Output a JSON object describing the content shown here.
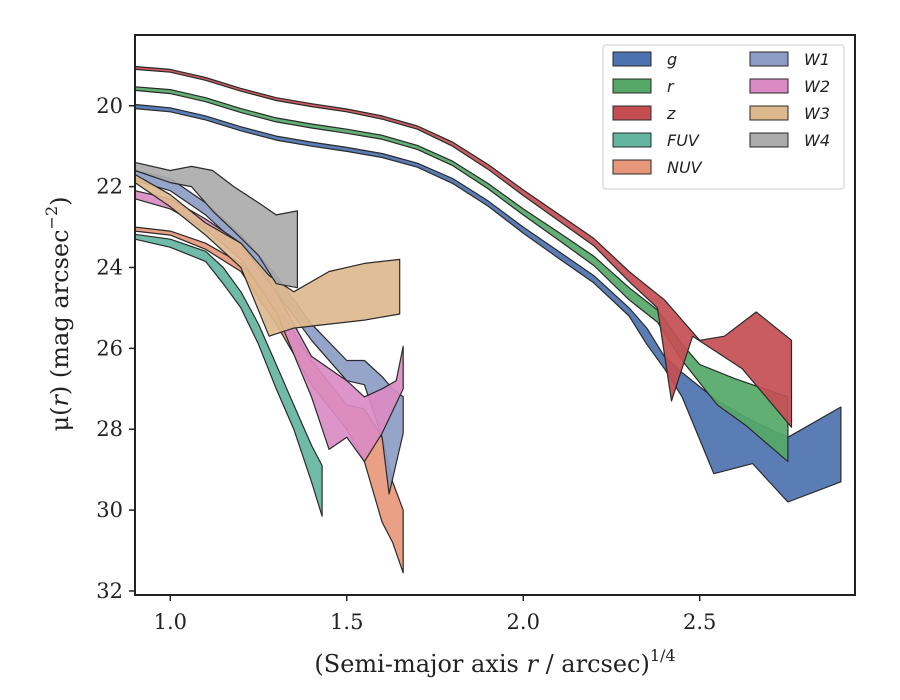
{
  "chart_data": {
    "type": "area",
    "xlabel": "(Semi-major axis r / arcsec)^1/4",
    "xlabel_main": "(Semi-major axis ",
    "xlabel_var": "r",
    "xlabel_rest": " / arcsec)",
    "xlabel_sup": "1/4",
    "ylabel": "μ(r) (mag arcsec^−2)",
    "ylabel_main": "μ(",
    "ylabel_var": "r",
    "ylabel_rest": ") (mag arcsec",
    "ylabel_sup": "−2",
    "ylabel_close": ")",
    "xlim": [
      0.9,
      2.94
    ],
    "ylim": [
      32.1,
      18.25
    ],
    "y_inverted": true,
    "xticks": [
      1.0,
      1.5,
      2.0,
      2.5
    ],
    "xtick_labels": [
      "1.0",
      "1.5",
      "2.0",
      "2.5"
    ],
    "yticks": [
      20,
      22,
      24,
      26,
      28,
      30,
      32
    ],
    "ytick_labels": [
      "20",
      "22",
      "24",
      "26",
      "28",
      "30",
      "32"
    ],
    "grid": false,
    "legend": {
      "placement": "top-right",
      "columns": 2
    },
    "series": [
      {
        "name": "g",
        "color": "#4C72B0",
        "upper": [
          [
            0.9,
            19.97
          ],
          [
            1.0,
            20.05
          ],
          [
            1.1,
            20.25
          ],
          [
            1.2,
            20.52
          ],
          [
            1.3,
            20.75
          ],
          [
            1.4,
            20.9
          ],
          [
            1.5,
            21.03
          ],
          [
            1.6,
            21.18
          ],
          [
            1.7,
            21.42
          ],
          [
            1.8,
            21.8
          ],
          [
            1.9,
            22.35
          ],
          [
            2.0,
            23.0
          ],
          [
            2.1,
            23.6
          ],
          [
            2.2,
            24.2
          ],
          [
            2.3,
            25.0
          ],
          [
            2.35,
            25.5
          ],
          [
            2.4,
            26.2
          ],
          [
            2.45,
            26.6
          ],
          [
            2.55,
            27.3
          ],
          [
            2.65,
            27.8
          ],
          [
            2.75,
            28.2
          ],
          [
            2.9,
            27.45
          ]
        ],
        "lower": [
          [
            0.9,
            20.07
          ],
          [
            1.0,
            20.15
          ],
          [
            1.1,
            20.35
          ],
          [
            1.2,
            20.62
          ],
          [
            1.3,
            20.85
          ],
          [
            1.4,
            21.0
          ],
          [
            1.5,
            21.13
          ],
          [
            1.6,
            21.28
          ],
          [
            1.7,
            21.52
          ],
          [
            1.8,
            21.92
          ],
          [
            1.9,
            22.48
          ],
          [
            2.0,
            23.15
          ],
          [
            2.1,
            23.77
          ],
          [
            2.2,
            24.38
          ],
          [
            2.3,
            25.2
          ],
          [
            2.35,
            25.9
          ],
          [
            2.4,
            26.5
          ],
          [
            2.45,
            27.2
          ],
          [
            2.54,
            29.1
          ],
          [
            2.65,
            28.85
          ],
          [
            2.75,
            29.8
          ],
          [
            2.9,
            29.3
          ]
        ]
      },
      {
        "name": "r",
        "color": "#55A868",
        "upper": [
          [
            0.9,
            19.53
          ],
          [
            1.0,
            19.6
          ],
          [
            1.1,
            19.8
          ],
          [
            1.2,
            20.07
          ],
          [
            1.3,
            20.3
          ],
          [
            1.4,
            20.45
          ],
          [
            1.5,
            20.58
          ],
          [
            1.6,
            20.73
          ],
          [
            1.7,
            20.98
          ],
          [
            1.8,
            21.37
          ],
          [
            1.9,
            21.92
          ],
          [
            2.0,
            22.55
          ],
          [
            2.1,
            23.13
          ],
          [
            2.2,
            23.72
          ],
          [
            2.3,
            24.5
          ],
          [
            2.38,
            25.05
          ],
          [
            2.45,
            25.9
          ],
          [
            2.5,
            26.4
          ],
          [
            2.6,
            26.75
          ],
          [
            2.75,
            27.2
          ]
        ],
        "lower": [
          [
            0.9,
            19.62
          ],
          [
            1.0,
            19.7
          ],
          [
            1.1,
            19.9
          ],
          [
            1.2,
            20.17
          ],
          [
            1.3,
            20.4
          ],
          [
            1.4,
            20.55
          ],
          [
            1.5,
            20.68
          ],
          [
            1.6,
            20.83
          ],
          [
            1.7,
            21.08
          ],
          [
            1.8,
            21.48
          ],
          [
            1.9,
            22.05
          ],
          [
            2.0,
            22.7
          ],
          [
            2.1,
            23.32
          ],
          [
            2.2,
            23.95
          ],
          [
            2.3,
            24.8
          ],
          [
            2.38,
            25.35
          ],
          [
            2.45,
            26.3
          ],
          [
            2.55,
            27.4
          ],
          [
            2.63,
            27.9
          ],
          [
            2.75,
            28.8
          ]
        ]
      },
      {
        "name": "z",
        "color": "#C44E52",
        "upper": [
          [
            0.9,
            19.03
          ],
          [
            1.0,
            19.1
          ],
          [
            1.1,
            19.3
          ],
          [
            1.2,
            19.57
          ],
          [
            1.3,
            19.8
          ],
          [
            1.4,
            19.95
          ],
          [
            1.5,
            20.08
          ],
          [
            1.6,
            20.25
          ],
          [
            1.7,
            20.5
          ],
          [
            1.8,
            20.9
          ],
          [
            1.9,
            21.45
          ],
          [
            2.0,
            22.08
          ],
          [
            2.1,
            22.68
          ],
          [
            2.2,
            23.28
          ],
          [
            2.3,
            24.1
          ],
          [
            2.4,
            24.8
          ],
          [
            2.45,
            25.3
          ],
          [
            2.5,
            25.8
          ],
          [
            2.57,
            25.7
          ],
          [
            2.66,
            25.1
          ],
          [
            2.76,
            25.8
          ]
        ],
        "lower": [
          [
            0.9,
            19.1
          ],
          [
            1.0,
            19.17
          ],
          [
            1.1,
            19.37
          ],
          [
            1.2,
            19.64
          ],
          [
            1.3,
            19.87
          ],
          [
            1.4,
            20.02
          ],
          [
            1.5,
            20.15
          ],
          [
            1.6,
            20.33
          ],
          [
            1.7,
            20.58
          ],
          [
            1.8,
            21.0
          ],
          [
            1.9,
            21.57
          ],
          [
            2.0,
            22.22
          ],
          [
            2.1,
            22.84
          ],
          [
            2.2,
            23.46
          ],
          [
            2.3,
            24.35
          ],
          [
            2.38,
            25.0
          ],
          [
            2.42,
            27.3
          ],
          [
            2.48,
            25.7
          ],
          [
            2.62,
            26.5
          ],
          [
            2.76,
            27.95
          ]
        ]
      },
      {
        "name": "FUV",
        "color": "#64B5A0",
        "upper": [
          [
            0.9,
            23.18
          ],
          [
            1.0,
            23.3
          ],
          [
            1.1,
            23.6
          ],
          [
            1.15,
            24.0
          ],
          [
            1.2,
            24.6
          ],
          [
            1.25,
            25.4
          ],
          [
            1.3,
            26.4
          ],
          [
            1.35,
            27.4
          ],
          [
            1.4,
            28.4
          ],
          [
            1.43,
            28.9
          ]
        ],
        "lower": [
          [
            0.9,
            23.3
          ],
          [
            1.0,
            23.5
          ],
          [
            1.1,
            23.85
          ],
          [
            1.15,
            24.4
          ],
          [
            1.2,
            25.0
          ],
          [
            1.25,
            25.9
          ],
          [
            1.3,
            27.0
          ],
          [
            1.35,
            28.0
          ],
          [
            1.4,
            29.3
          ],
          [
            1.43,
            30.15
          ]
        ]
      },
      {
        "name": "NUV",
        "color": "#E8987A",
        "upper": [
          [
            0.9,
            23.0
          ],
          [
            1.0,
            23.1
          ],
          [
            1.1,
            23.4
          ],
          [
            1.2,
            23.9
          ],
          [
            1.3,
            24.9
          ],
          [
            1.4,
            26.3
          ],
          [
            1.5,
            27.4
          ],
          [
            1.55,
            27.5
          ],
          [
            1.6,
            28.2
          ],
          [
            1.63,
            29.3
          ],
          [
            1.66,
            30.0
          ]
        ],
        "lower": [
          [
            0.9,
            23.1
          ],
          [
            1.0,
            23.2
          ],
          [
            1.1,
            23.55
          ],
          [
            1.2,
            24.1
          ],
          [
            1.3,
            25.4
          ],
          [
            1.4,
            26.9
          ],
          [
            1.5,
            28.0
          ],
          [
            1.55,
            28.8
          ],
          [
            1.6,
            30.3
          ],
          [
            1.63,
            30.8
          ],
          [
            1.66,
            31.55
          ]
        ]
      },
      {
        "name": "W1",
        "color": "#8C9CC4",
        "upper": [
          [
            0.9,
            21.6
          ],
          [
            1.0,
            21.8
          ],
          [
            1.1,
            22.4
          ],
          [
            1.2,
            23.2
          ],
          [
            1.3,
            24.2
          ],
          [
            1.4,
            25.4
          ],
          [
            1.5,
            26.3
          ],
          [
            1.55,
            26.3
          ],
          [
            1.6,
            26.7
          ],
          [
            1.63,
            27.0
          ],
          [
            1.66,
            27.2
          ]
        ],
        "lower": [
          [
            0.9,
            21.85
          ],
          [
            1.0,
            22.1
          ],
          [
            1.1,
            22.7
          ],
          [
            1.2,
            23.5
          ],
          [
            1.3,
            24.6
          ],
          [
            1.4,
            25.8
          ],
          [
            1.5,
            26.8
          ],
          [
            1.55,
            26.9
          ],
          [
            1.6,
            28.2
          ],
          [
            1.62,
            29.6
          ],
          [
            1.66,
            28.1
          ]
        ]
      },
      {
        "name": "W2",
        "color": "#DA8BC3",
        "upper": [
          [
            0.9,
            22.1
          ],
          [
            1.0,
            22.3
          ],
          [
            1.1,
            22.8
          ],
          [
            1.2,
            23.4
          ],
          [
            1.3,
            24.6
          ],
          [
            1.4,
            26.2
          ],
          [
            1.5,
            26.8
          ],
          [
            1.55,
            27.2
          ],
          [
            1.6,
            27.0
          ],
          [
            1.64,
            26.8
          ],
          [
            1.66,
            25.95
          ]
        ],
        "lower": [
          [
            0.9,
            22.3
          ],
          [
            1.0,
            22.55
          ],
          [
            1.1,
            23.05
          ],
          [
            1.2,
            23.8
          ],
          [
            1.3,
            25.1
          ],
          [
            1.4,
            27.2
          ],
          [
            1.45,
            28.5
          ],
          [
            1.5,
            28.2
          ],
          [
            1.55,
            28.8
          ],
          [
            1.6,
            28.1
          ],
          [
            1.66,
            27.0
          ]
        ]
      },
      {
        "name": "W3",
        "color": "#DDB88E",
        "upper": [
          [
            0.9,
            21.7
          ],
          [
            1.0,
            22.2
          ],
          [
            1.1,
            22.9
          ],
          [
            1.2,
            23.4
          ],
          [
            1.28,
            24.2
          ],
          [
            1.35,
            24.6
          ],
          [
            1.45,
            24.1
          ],
          [
            1.55,
            23.9
          ],
          [
            1.65,
            23.8
          ]
        ],
        "lower": [
          [
            0.9,
            21.9
          ],
          [
            1.0,
            22.5
          ],
          [
            1.1,
            23.2
          ],
          [
            1.2,
            24.0
          ],
          [
            1.28,
            25.7
          ],
          [
            1.35,
            25.5
          ],
          [
            1.45,
            25.4
          ],
          [
            1.55,
            25.3
          ],
          [
            1.65,
            25.15
          ]
        ]
      },
      {
        "name": "W4",
        "color": "#ABABAB",
        "upper": [
          [
            0.9,
            21.4
          ],
          [
            1.0,
            21.6
          ],
          [
            1.06,
            21.5
          ],
          [
            1.12,
            21.6
          ],
          [
            1.18,
            22.0
          ],
          [
            1.25,
            22.4
          ],
          [
            1.3,
            22.7
          ],
          [
            1.36,
            22.6
          ]
        ],
        "lower": [
          [
            0.9,
            21.6
          ],
          [
            1.0,
            21.9
          ],
          [
            1.06,
            22.0
          ],
          [
            1.12,
            22.6
          ],
          [
            1.18,
            23.1
          ],
          [
            1.25,
            23.7
          ],
          [
            1.3,
            24.4
          ],
          [
            1.36,
            24.5
          ]
        ]
      }
    ]
  }
}
